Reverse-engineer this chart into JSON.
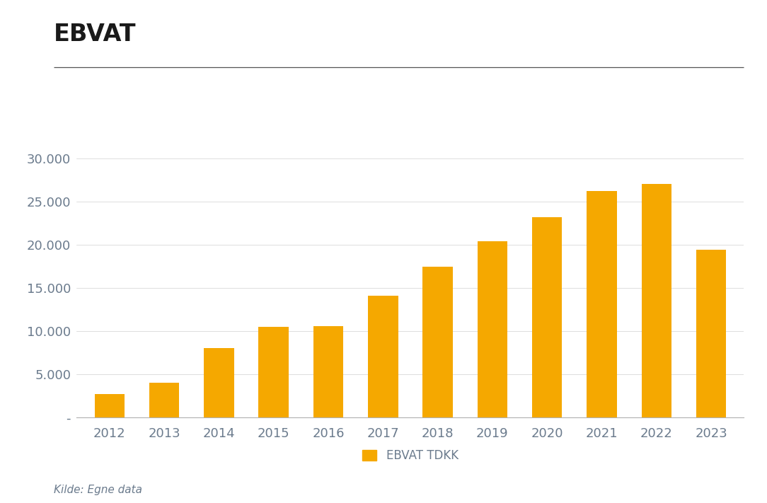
{
  "title": "EBVAT",
  "categories": [
    2012,
    2013,
    2014,
    2015,
    2016,
    2017,
    2018,
    2019,
    2020,
    2021,
    2022,
    2023
  ],
  "values": [
    2700,
    4000,
    8000,
    10500,
    10600,
    14100,
    17400,
    20400,
    23200,
    26200,
    27000,
    19400
  ],
  "bar_color": "#F5A800",
  "ylim": [
    0,
    32000
  ],
  "yticks": [
    0,
    5000,
    10000,
    15000,
    20000,
    25000,
    30000
  ],
  "ytick_labels": [
    "-",
    "5.000",
    "10.000",
    "15.000",
    "20.000",
    "25.000",
    "30.000"
  ],
  "legend_label": "EBVAT TDKK",
  "source_text": "Kilde: Egne data",
  "background_color": "#ffffff",
  "title_fontsize": 24,
  "tick_fontsize": 13,
  "legend_fontsize": 12,
  "source_fontsize": 11,
  "bar_width": 0.55,
  "title_color": "#1a1a1a",
  "tick_color": "#6b7b8d",
  "source_color": "#6b7b8d",
  "grid_color": "#d0d0d0",
  "spine_color": "#b0b0b0"
}
